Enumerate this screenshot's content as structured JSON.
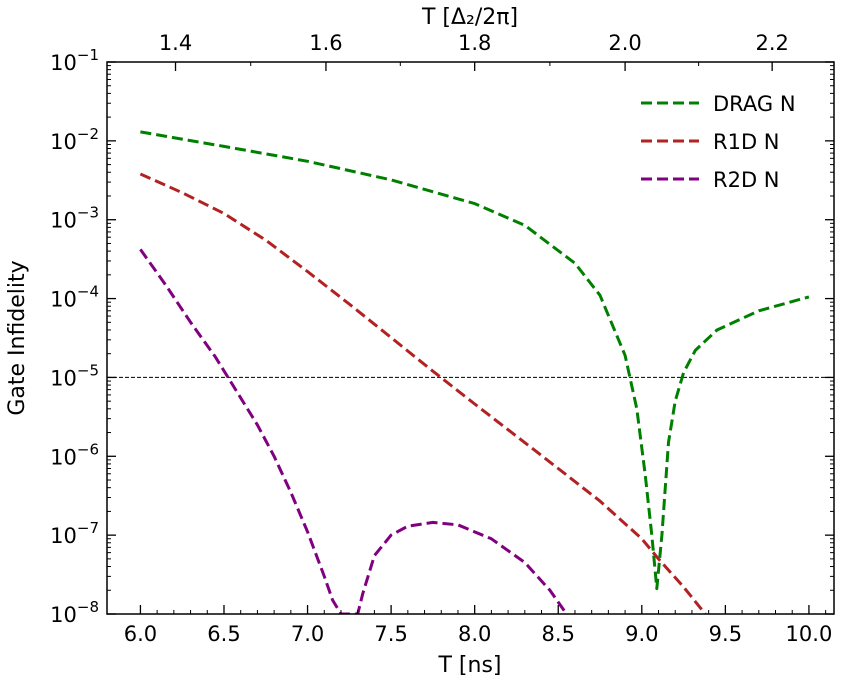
{
  "chart_data": {
    "type": "line",
    "xlabel": "T [ns]",
    "xlabel_top": "T [Δ₂/2π]",
    "ylabel": "Gate Infidelity",
    "y_scale": "log",
    "xlim": [
      5.8,
      10.15
    ],
    "ylim": [
      1e-08,
      0.1
    ],
    "x_ticks": [
      6.0,
      6.5,
      7.0,
      7.5,
      8.0,
      8.5,
      9.0,
      9.5,
      10.0
    ],
    "x_tick_labels": [
      "6.0",
      "6.5",
      "7.0",
      "7.5",
      "8.0",
      "8.5",
      "9.0",
      "9.5",
      "10.0"
    ],
    "top_ticks_ns": [
      6.21,
      7.11,
      8.0,
      8.9,
      9.78
    ],
    "top_tick_labels": [
      "1.4",
      "1.6",
      "1.8",
      "2.0",
      "2.2"
    ],
    "y_tick_exponents": [
      "−8",
      "−7",
      "−6",
      "−5",
      "−4",
      "−3",
      "−2",
      "−1"
    ],
    "y_tick_values": [
      1e-08,
      1e-07,
      1e-06,
      1e-05,
      0.0001,
      0.001,
      0.01,
      0.1
    ],
    "hline": {
      "y": 1e-05,
      "style": "dashed",
      "color": "#000000"
    },
    "legend_position": "top-right",
    "series": [
      {
        "name": "DRAG N",
        "color": "#008000",
        "x": [
          6.0,
          6.5,
          7.0,
          7.5,
          8.0,
          8.3,
          8.6,
          8.75,
          8.9,
          8.97,
          9.02,
          9.06,
          9.09,
          9.12,
          9.16,
          9.2,
          9.25,
          9.32,
          9.45,
          9.7,
          10.0
        ],
        "y": [
          0.013,
          0.0085,
          0.0055,
          0.0032,
          0.0016,
          0.00085,
          0.00028,
          0.00011,
          1.9e-05,
          4e-06,
          6e-07,
          1e-07,
          2.1e-08,
          1e-07,
          1.5e-06,
          5e-06,
          1.15e-05,
          2.2e-05,
          4e-05,
          7e-05,
          0.000105
        ]
      },
      {
        "name": "R1D N",
        "color": "#b22222",
        "x": [
          6.0,
          6.25,
          6.5,
          6.75,
          7.0,
          7.25,
          7.5,
          7.75,
          8.0,
          8.25,
          8.5,
          8.75,
          9.0,
          9.1,
          9.25,
          9.38
        ],
        "y": [
          0.0038,
          0.0022,
          0.0012,
          0.00055,
          0.00022,
          8.5e-05,
          3.2e-05,
          1.2e-05,
          4.6e-06,
          1.8e-06,
          7e-07,
          2.7e-07,
          9e-08,
          5e-08,
          2.2e-08,
          1e-08
        ]
      },
      {
        "name": "R2D N",
        "color": "#800080",
        "x": [
          6.0,
          6.15,
          6.3,
          6.45,
          6.6,
          6.7,
          6.8,
          6.9,
          7.0,
          7.1,
          7.15,
          7.2,
          7.3,
          7.33,
          7.4,
          7.5,
          7.6,
          7.75,
          7.9,
          8.1,
          8.3,
          8.45,
          8.55
        ],
        "y": [
          0.00042,
          0.00015,
          5e-05,
          1.8e-05,
          5.5e-06,
          2.5e-06,
          1e-06,
          3.5e-07,
          1.1e-07,
          3e-08,
          1.5e-08,
          1e-08,
          1e-08,
          1.8e-08,
          5.5e-08,
          1e-07,
          1.3e-07,
          1.45e-07,
          1.35e-07,
          9e-08,
          4.5e-08,
          2e-08,
          1e-08
        ]
      }
    ]
  }
}
